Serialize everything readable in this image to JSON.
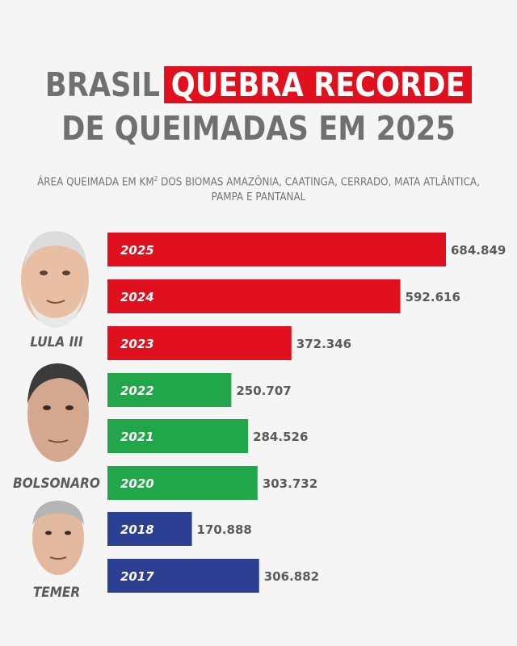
{
  "title": {
    "line1_plain": "BRASIL",
    "line1_highlight": "QUEBRA RECORDE",
    "line2": "DE QUEIMADAS EM 2025"
  },
  "subtitle": {
    "prefix": "ÁREA QUEIMADA EM KM",
    "superscript": "2",
    "suffix": " DOS BIOMAS AMAZÔNIA, CAATINGA, CERRADO, MATA ATLÂNTICA, PAMPA E PANTANAL"
  },
  "people": [
    {
      "name": "LULA III",
      "icon": "lula-portrait-icon"
    },
    {
      "name": "BOLSONARO",
      "icon": "bolsonaro-portrait-icon"
    },
    {
      "name": "TEMER",
      "icon": "temer-portrait-icon"
    }
  ],
  "chart_data": {
    "type": "bar",
    "orientation": "horizontal",
    "categories": [
      "2025",
      "2024",
      "2023",
      "2022",
      "2021",
      "2020",
      "2018",
      "2017"
    ],
    "values": [
      684849,
      592616,
      372346,
      250707,
      284526,
      303732,
      170888,
      306882
    ],
    "value_labels": [
      "684.849",
      "592.616",
      "372.346",
      "250.707",
      "284.526",
      "303.732",
      "170.888",
      "306.882"
    ],
    "groups": [
      "LULA III",
      "LULA III",
      "LULA III",
      "BOLSONARO",
      "BOLSONARO",
      "BOLSONARO",
      "TEMER",
      "TEMER"
    ],
    "colors": {
      "LULA III": "#e0101e",
      "BOLSONARO": "#21a64a",
      "TEMER": "#2b3f93"
    },
    "xlim": [
      0,
      684849
    ],
    "title": "",
    "xlabel": "",
    "ylabel": "",
    "grid": false,
    "legend": "none"
  }
}
